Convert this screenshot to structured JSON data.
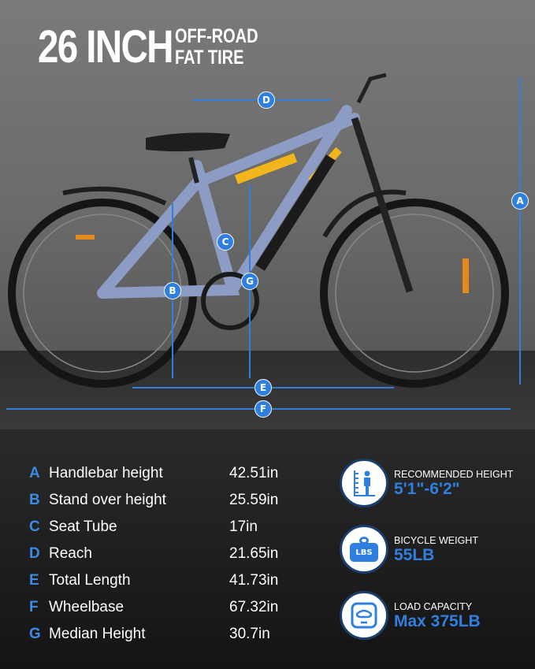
{
  "headline": {
    "big": "26 INCH",
    "line1": "OFF-ROAD",
    "line2": "FAT TIRE"
  },
  "markers": [
    "A",
    "B",
    "C",
    "D",
    "E",
    "F",
    "G"
  ],
  "dimensions": [
    {
      "key": "A",
      "name": "Handlebar height",
      "value": "42.51in"
    },
    {
      "key": "B",
      "name": "Stand over height",
      "value": "25.59in"
    },
    {
      "key": "C",
      "name": "Seat Tube",
      "value": "17in"
    },
    {
      "key": "D",
      "name": "Reach",
      "value": "21.65in"
    },
    {
      "key": "E",
      "name": "Total Length",
      "value": "41.73in"
    },
    {
      "key": "F",
      "name": "Wheelbase",
      "value": "67.32in"
    },
    {
      "key": "G",
      "name": "Median Height",
      "value": "30.7in"
    }
  ],
  "specs": [
    {
      "icon": "person-height-icon",
      "title": "RECOMMENDED HEIGHT",
      "value": "5'1\"-6'2\""
    },
    {
      "icon": "weight-lbs-icon",
      "icon_text": "LBS",
      "title": "BICYCLE WEIGHT",
      "value": "55LB"
    },
    {
      "icon": "scale-icon",
      "title": "LOAD CAPACITY",
      "value": "Max 375LB"
    }
  ],
  "colors": {
    "accent": "#2f7fe0",
    "frame": "#8c9cc4",
    "stripe": "#f2b51c"
  }
}
